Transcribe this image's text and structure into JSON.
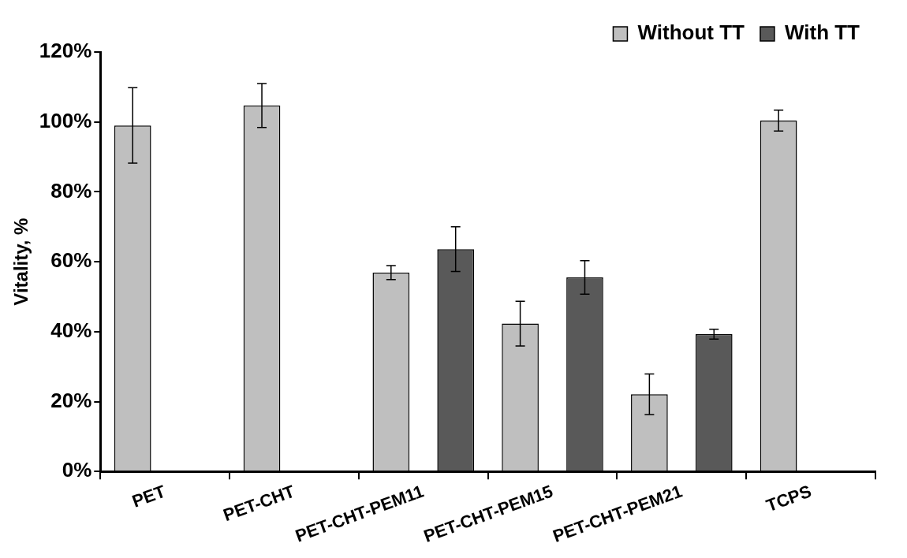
{
  "chart_data": {
    "type": "bar",
    "ylabel": "Vitality, %",
    "categories": [
      "PET",
      "PET-CHT",
      "PET-CHT-PEM11",
      "PET-CHT-PEM15",
      "PET-CHT-PEM21",
      "TCPS"
    ],
    "series": [
      {
        "name": "Without TT",
        "color": "#bfbfbf",
        "values": [
          99,
          104.7,
          56.9,
          42.3,
          22.1,
          100.4
        ],
        "errors": [
          10.8,
          6.3,
          2,
          6.4,
          5.8,
          3
        ]
      },
      {
        "name": "With TT",
        "color": "#595959",
        "values": [
          null,
          null,
          63.6,
          55.5,
          39.3,
          null
        ],
        "errors": [
          null,
          null,
          6.4,
          4.8,
          1.4,
          null
        ]
      }
    ],
    "ylim": [
      0,
      120
    ],
    "yticks": [
      {
        "value": 0,
        "label": "0%"
      },
      {
        "value": 20,
        "label": "20%"
      },
      {
        "value": 40,
        "label": "40%"
      },
      {
        "value": 60,
        "label": "60%"
      },
      {
        "value": 80,
        "label": "80%"
      },
      {
        "value": 100,
        "label": "100%"
      },
      {
        "value": 120,
        "label": "120%"
      }
    ],
    "grid": false,
    "legend": "top right"
  }
}
